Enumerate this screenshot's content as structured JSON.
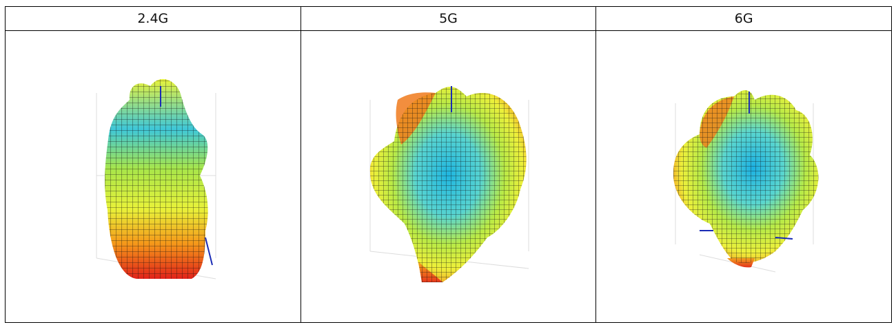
{
  "table": {
    "columns": [
      {
        "label": "2.4G"
      },
      {
        "label": "5G"
      },
      {
        "label": "6G"
      }
    ]
  },
  "colors": {
    "border": "#000000",
    "axis": "#1a2bb5",
    "gradient": [
      "#2ec8e6",
      "#7de07a",
      "#e8f23a",
      "#f59a1a",
      "#e6281e"
    ]
  }
}
